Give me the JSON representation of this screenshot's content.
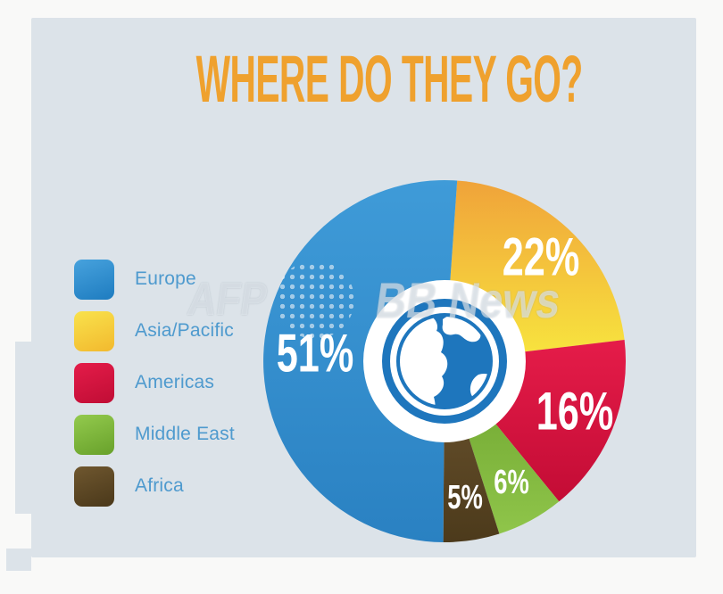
{
  "title": "WHERE DO THEY GO?",
  "watermark": {
    "part1": "AFP",
    "part2": "BB News"
  },
  "colors": {
    "canvas_bg": "#f9f9f8",
    "panel_bg": "#dce3e9",
    "title": "#efa12e",
    "legend_label": "#4e9ace",
    "pct_label": "#ffffff",
    "donut_hole": "#ffffff",
    "globe_blue": "#1e76bd",
    "globe_land": "#ffffff"
  },
  "legend": {
    "items": [
      {
        "label": "Europe",
        "color_light": "#47a2dd",
        "color_dark": "#1e7cc0"
      },
      {
        "label": "Asia/Pacific",
        "color_light": "#f9e24c",
        "color_dark": "#f2b92e"
      },
      {
        "label": "Americas",
        "color_light": "#e41c49",
        "color_dark": "#c00d35"
      },
      {
        "label": "Middle East",
        "color_light": "#93ca4d",
        "color_dark": "#68a12b"
      },
      {
        "label": "Africa",
        "color_light": "#6f572f",
        "color_dark": "#4a381a"
      }
    ]
  },
  "chart_data": {
    "type": "pie",
    "subtype": "donut",
    "title": "WHERE DO THEY GO?",
    "direction": "clockwise",
    "start_angle_deg": 4,
    "center_icon": "globe",
    "legend_position": "left",
    "slices": [
      {
        "label": "Asia/Pacific",
        "value": 22,
        "display": "22%",
        "color_top": "#f0a33a",
        "color_bottom": "#f8e63e"
      },
      {
        "label": "Americas",
        "value": 16,
        "display": "16%",
        "color_top": "#e51c49",
        "color_bottom": "#c30c35"
      },
      {
        "label": "Middle East",
        "value": 6,
        "display": "6%",
        "color_top": "#6da32e",
        "color_bottom": "#8fc54a"
      },
      {
        "label": "Africa",
        "value": 5,
        "display": "5%",
        "color_top": "#6d5530",
        "color_bottom": "#4c3a1b"
      },
      {
        "label": "Europe",
        "value": 51,
        "display": "51%",
        "color_top": "#3f9bd8",
        "color_bottom": "#2a81c2"
      }
    ]
  }
}
